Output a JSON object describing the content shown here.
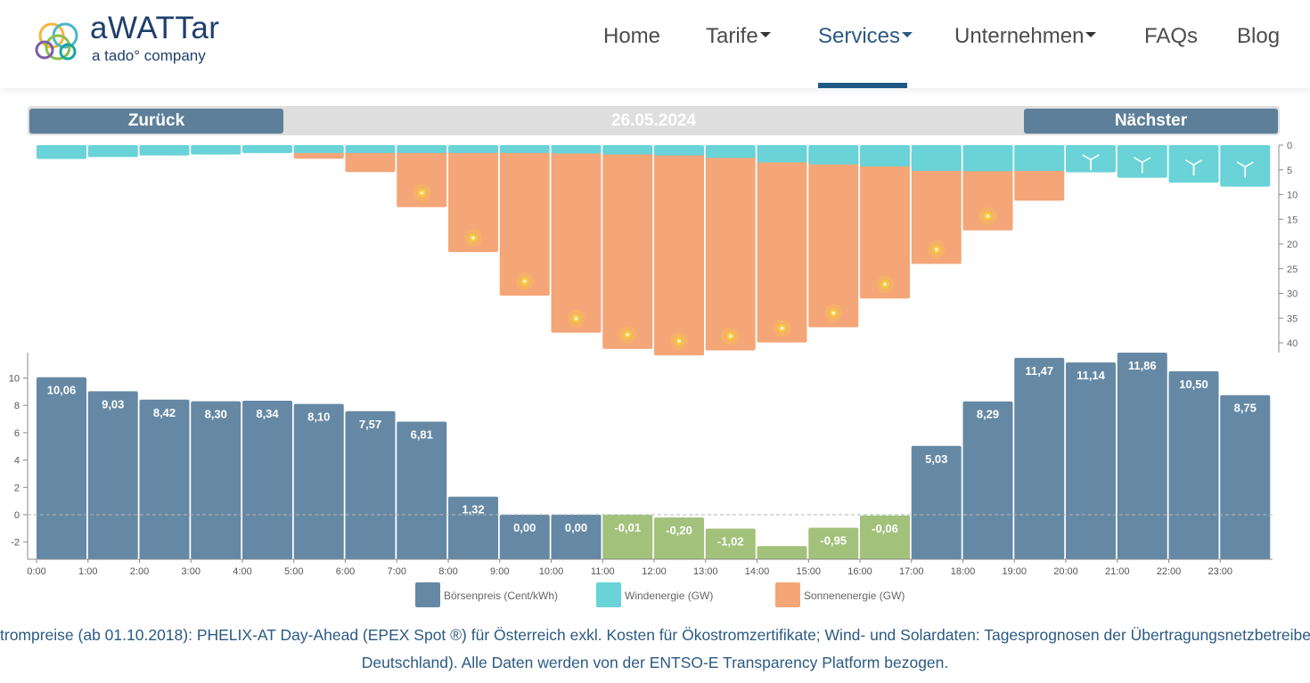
{
  "brand": {
    "name": "aWATTar",
    "tagline": "a tado° company"
  },
  "nav": [
    {
      "label": "Home",
      "dropdown": false,
      "active": false
    },
    {
      "label": "Tarife",
      "dropdown": true,
      "active": false
    },
    {
      "label": "Services",
      "dropdown": true,
      "active": true
    },
    {
      "label": "Unternehmen",
      "dropdown": true,
      "active": false
    },
    {
      "label": "FAQs",
      "dropdown": false,
      "active": false
    },
    {
      "label": "Blog",
      "dropdown": false,
      "active": false
    }
  ],
  "datebar": {
    "prev_label": "Zurück",
    "date": "26.05.2024",
    "next_label": "Nächster"
  },
  "colors": {
    "price": "#6589a5",
    "price_negative": "#a2c27b",
    "wind": "#69d3d7",
    "solar": "#f4a678",
    "sun_icon": "#f6c544",
    "accent": "#1f5a86"
  },
  "chart_data": {
    "type": "bar",
    "x_labels": [
      "0:00",
      "1:00",
      "2:00",
      "3:00",
      "4:00",
      "5:00",
      "6:00",
      "7:00",
      "8:00",
      "9:00",
      "10:00",
      "11:00",
      "12:00",
      "13:00",
      "14:00",
      "15:00",
      "16:00",
      "17:00",
      "18:00",
      "19:00",
      "20:00",
      "21:00",
      "22:00",
      "23:00"
    ],
    "price": {
      "name": "Börsenpreis (Cent/kWh)",
      "values": [
        10.06,
        9.03,
        8.42,
        8.3,
        8.34,
        8.1,
        7.57,
        6.81,
        1.32,
        0.0,
        0.0,
        -0.01,
        -0.2,
        -1.02,
        -2.3,
        -0.95,
        -0.06,
        5.03,
        8.29,
        11.47,
        11.14,
        11.86,
        10.5,
        8.75
      ],
      "labels": [
        "10,06",
        "9,03",
        "8,42",
        "8,30",
        "8,34",
        "8,10",
        "7,57",
        "6,81",
        "1,32",
        "0,00",
        "0,00",
        "-0,01",
        "-0,20",
        "-1,02",
        "",
        "-0,95",
        "-0,06",
        "5,03",
        "8,29",
        "11,47",
        "11,14",
        "11,86",
        "10,50",
        "8,75"
      ],
      "yticks": [
        10,
        8,
        6,
        4,
        2,
        0,
        -2
      ],
      "ylim": [
        -3.2,
        11.9
      ]
    },
    "wind": {
      "name": "Windenergie (GW)",
      "values": [
        2.8,
        2.4,
        2.1,
        1.9,
        1.6,
        1.6,
        1.6,
        1.6,
        1.6,
        1.6,
        1.7,
        1.9,
        2.1,
        2.6,
        3.5,
        3.9,
        4.3,
        5.2,
        5.3,
        5.2,
        5.5,
        6.6,
        7.6,
        8.4
      ],
      "wind_icons": [
        false,
        false,
        false,
        false,
        false,
        false,
        false,
        false,
        false,
        false,
        false,
        false,
        false,
        false,
        false,
        false,
        false,
        false,
        false,
        false,
        true,
        true,
        true,
        true
      ]
    },
    "solar": {
      "name": "Sonnenenergie (GW)",
      "values": [
        0,
        0,
        0,
        0,
        0,
        0.4,
        3.1,
        10.2,
        19.3,
        28.1,
        35.6,
        38.9,
        40.2,
        39.2,
        37.6,
        34.5,
        28.7,
        21.7,
        14.9,
        8.9,
        1.8,
        0,
        0,
        0
      ],
      "sun_icons": [
        false,
        false,
        false,
        false,
        false,
        false,
        false,
        true,
        true,
        true,
        true,
        true,
        true,
        true,
        true,
        true,
        true,
        true,
        true,
        false,
        false,
        false,
        false,
        false
      ],
      "yticks": [
        0,
        5,
        10,
        15,
        20,
        25,
        30,
        35,
        40
      ]
    }
  },
  "caption": {
    "line1": "trompreise (ab 01.10.2018): PHELIX-AT Day-Ahead (EPEX Spot ®) für Österreich exkl. Kosten für Ökostromzertifikate; Wind- und Solardaten: Tagesprognosen der Übertragungsnetzbetreiber (inkl.",
    "line2": "Deutschland). Alle Daten werden von der ENTSO-E Transparency Platform bezogen."
  }
}
